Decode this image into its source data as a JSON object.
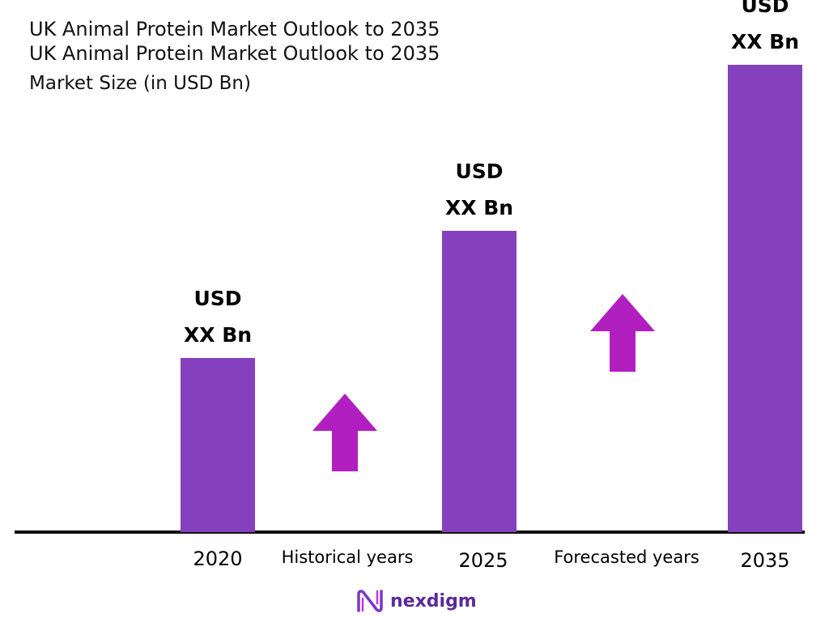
{
  "title_lines": [
    "UK Animal Protein Market Outlook to 2035",
    "UK Animal Protein Market Outlook to 2035"
  ],
  "subtitle": "Market Size (in USD Bn)",
  "period_labels": {
    "historical": "Historical years",
    "forecasted": "Forecasted years"
  },
  "logo_text": "nexdigm",
  "colors": {
    "bar": "#8540bd",
    "arrow": "#b21fc0",
    "axis": "#111111"
  },
  "chart_data": {
    "type": "bar",
    "title": "UK Animal Protein Market Outlook to 2035",
    "ylabel": "Market Size (in USD Bn)",
    "categories": [
      "2020",
      "2025",
      "2035"
    ],
    "values": [
      22,
      38,
      59
    ],
    "value_labels": [
      [
        "USD",
        "XX Bn"
      ],
      [
        "USD",
        "XX Bn"
      ],
      [
        "USD",
        "XX Bn"
      ]
    ],
    "ylim": [
      0,
      60
    ],
    "grid": false,
    "legend": "none"
  }
}
